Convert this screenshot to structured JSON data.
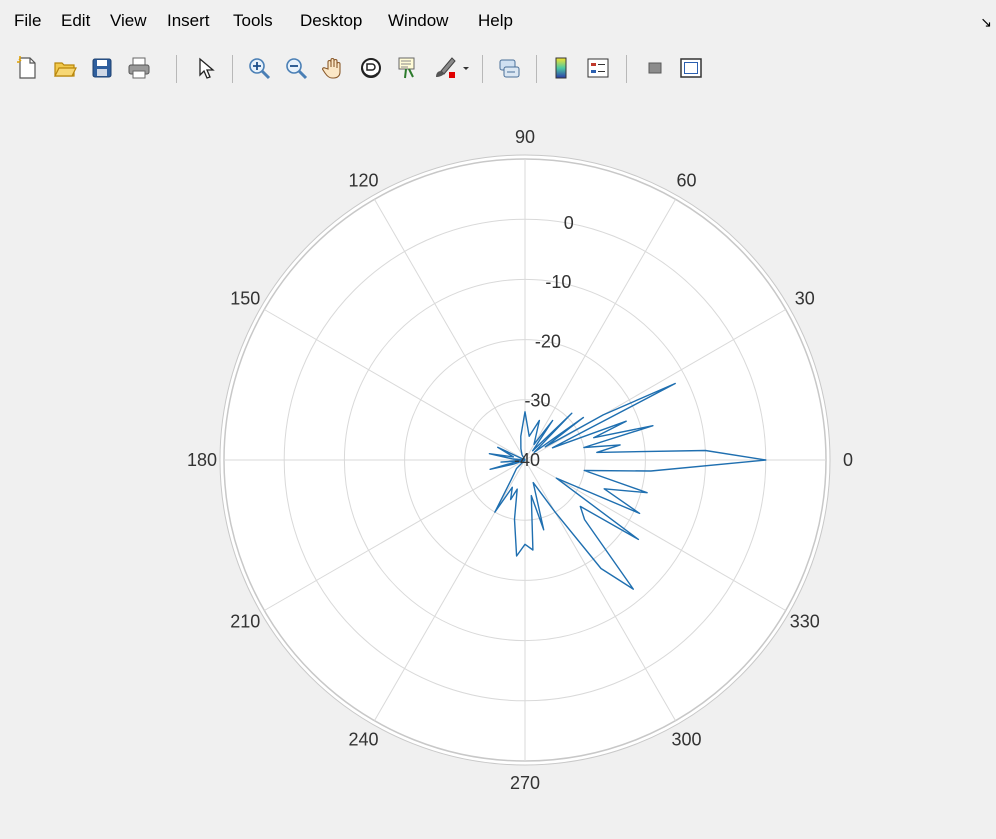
{
  "menu": [
    "File",
    "Edit",
    "View",
    "Insert",
    "Tools",
    "Desktop",
    "Window",
    "Help"
  ],
  "toolbar": {
    "icons": [
      "new-figure-icon",
      "open-file-icon",
      "save-icon",
      "print-icon",
      "pointer-icon",
      "zoom-in-icon",
      "zoom-out-icon",
      "pan-hand-icon",
      "rotate-3d-icon",
      "data-cursor-icon",
      "brush-icon",
      "brush-dropdown-icon",
      "link-plot-icon",
      "colorbar-icon",
      "legend-icon",
      "hide-plot-tools-icon",
      "show-plot-tools-icon"
    ]
  },
  "colors": {
    "series": "#1f6fb0",
    "grid": "#d9d9d9",
    "axis_ring": "#c8c8c8",
    "background": "#f0f0f0",
    "plot_background": "#ffffff"
  },
  "chart_data": {
    "type": "polar-line",
    "theta_ticks": [
      0,
      30,
      60,
      90,
      120,
      150,
      180,
      210,
      240,
      270,
      300,
      330
    ],
    "theta_tick_labels": [
      "0",
      "30",
      "60",
      "90",
      "120",
      "150",
      "180",
      "210",
      "240",
      "270",
      "300",
      "330"
    ],
    "r_ticks": [
      -40,
      -30,
      -20,
      -10,
      0
    ],
    "r_tick_labels": [
      "-40",
      "-30",
      "-20",
      "-10",
      "0"
    ],
    "rlim": [
      -40,
      10
    ],
    "grid": true,
    "series": [
      {
        "points": [
          [
            0,
            0
          ],
          [
            3,
            -10
          ],
          [
            6,
            -28
          ],
          [
            9,
            -24
          ],
          [
            12,
            -30
          ],
          [
            15,
            -18
          ],
          [
            18,
            -28
          ],
          [
            21,
            -22
          ],
          [
            24,
            -35
          ],
          [
            27,
            -12
          ],
          [
            30,
            -25
          ],
          [
            33,
            -36
          ],
          [
            36,
            -28
          ],
          [
            40,
            -38
          ],
          [
            45,
            -29
          ],
          [
            50,
            -38
          ],
          [
            55,
            -32
          ],
          [
            60,
            -37
          ],
          [
            70,
            -33
          ],
          [
            80,
            -36
          ],
          [
            90,
            -32
          ],
          [
            100,
            -36
          ],
          [
            110,
            -38
          ],
          [
            120,
            -39
          ],
          [
            140,
            -40
          ],
          [
            155,
            -35
          ],
          [
            165,
            -38
          ],
          [
            170,
            -34
          ],
          [
            175,
            -38
          ],
          [
            180,
            -40
          ],
          [
            185,
            -36
          ],
          [
            190,
            -39
          ],
          [
            195,
            -34
          ],
          [
            200,
            -38
          ],
          [
            210,
            -40
          ],
          [
            225,
            -38
          ],
          [
            235,
            -36
          ],
          [
            240,
            -30
          ],
          [
            245,
            -35
          ],
          [
            250,
            -33
          ],
          [
            255,
            -35
          ],
          [
            260,
            -30
          ],
          [
            265,
            -24
          ],
          [
            270,
            -26
          ],
          [
            275,
            -25
          ],
          [
            280,
            -34
          ],
          [
            285,
            -28
          ],
          [
            290,
            -36
          ],
          [
            300,
            -30
          ],
          [
            305,
            -18
          ],
          [
            310,
            -12
          ],
          [
            315,
            -26
          ],
          [
            320,
            -28
          ],
          [
            325,
            -17
          ],
          [
            330,
            -34
          ],
          [
            335,
            -19
          ],
          [
            340,
            -26
          ],
          [
            345,
            -19
          ],
          [
            350,
            -30
          ],
          [
            355,
            -19
          ],
          [
            360,
            0
          ]
        ]
      }
    ]
  }
}
